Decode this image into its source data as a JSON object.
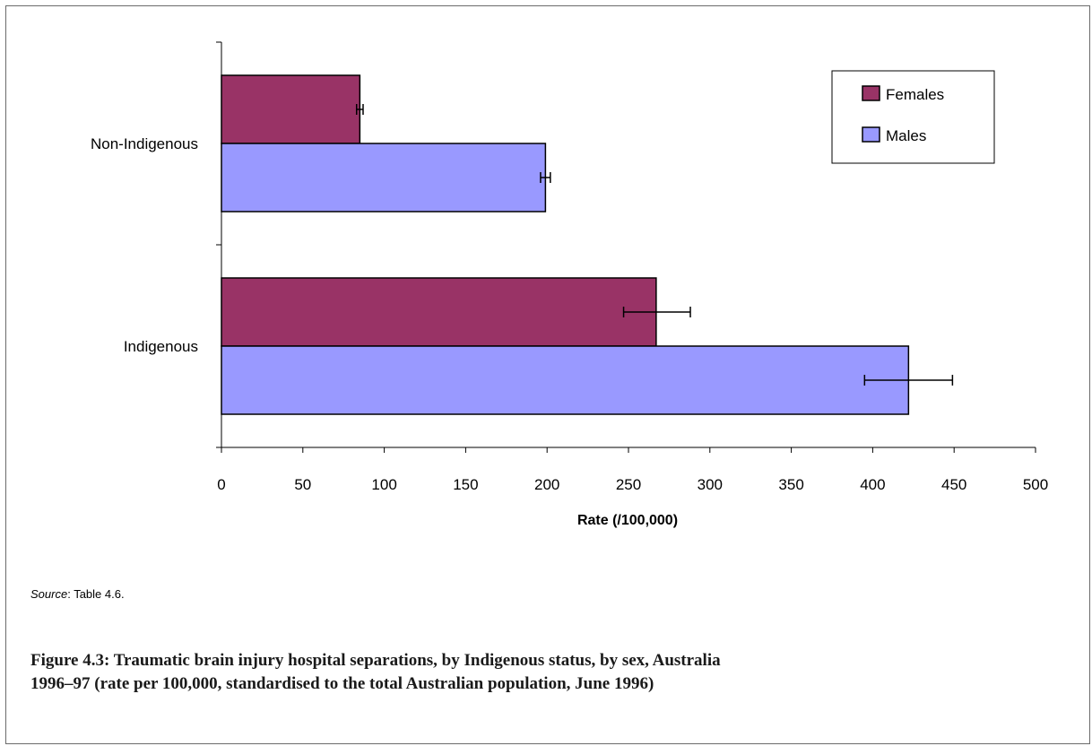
{
  "chart_data": {
    "type": "bar",
    "orientation": "horizontal",
    "categories": [
      "Non-Indigenous",
      "Indigenous"
    ],
    "series": [
      {
        "name": "Females",
        "values": [
          85,
          267
        ],
        "error_low": [
          83,
          247
        ],
        "error_high": [
          87,
          288
        ],
        "color": "#993366"
      },
      {
        "name": "Males",
        "values": [
          199,
          422
        ],
        "error_low": [
          196,
          395
        ],
        "error_high": [
          202,
          449
        ],
        "color": "#9999ff"
      }
    ],
    "xlabel": "Rate (/100,000)",
    "ylabel": "",
    "xlim": [
      0,
      500
    ],
    "xticks": [
      0,
      50,
      100,
      150,
      200,
      250,
      300,
      350,
      400,
      450,
      500
    ],
    "grid": false,
    "legend_position": "top-right"
  },
  "source": {
    "prefix": "Source",
    "text": ": Table 4.6."
  },
  "caption": "Figure 4.3: Traumatic brain injury hospital separations, by Indigenous status, by sex, Australia 1996–97 (rate per 100,000, standardised to the total Australian population, June 1996)"
}
